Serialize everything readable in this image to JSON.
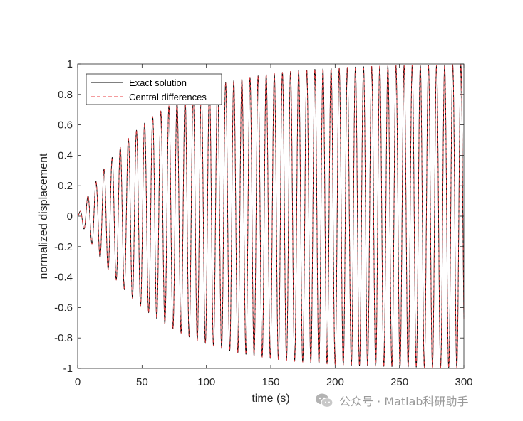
{
  "chart_data": {
    "type": "line",
    "title": "",
    "xlabel": "time (s)",
    "ylabel": "normalized displacement",
    "xlim": [
      0,
      300
    ],
    "ylim": [
      -1,
      1
    ],
    "xticks": [
      0,
      50,
      100,
      150,
      200,
      250,
      300
    ],
    "yticks": [
      -1,
      -0.8,
      -0.6,
      -0.4,
      -0.2,
      0,
      0.2,
      0.4,
      0.6,
      0.8,
      1
    ],
    "ytick_labels": [
      "-1",
      "-0.8",
      "-0.6",
      "-0.4",
      "-0.2",
      "0",
      "0.2",
      "0.4",
      "0.6",
      "0.8",
      "1"
    ],
    "grid": false,
    "legend_position": "top-left",
    "signal": {
      "period_s": 6.3,
      "envelope_time_constant_s": 55,
      "peak_amplitude": 1
    },
    "series": [
      {
        "name": "Exact solution",
        "color": "#000000",
        "line_style": "solid"
      },
      {
        "name": "Central differences",
        "color": "#e8383d",
        "line_style": "dashed"
      }
    ]
  },
  "watermark": {
    "text": "公众号 · Matlab科研助手",
    "icon": "wechat-icon"
  }
}
